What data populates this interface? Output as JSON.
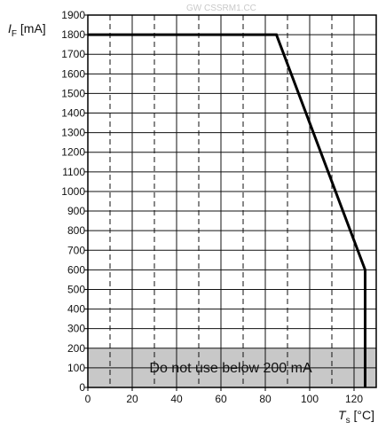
{
  "watermark": "GW CSSRM1.CC",
  "chart_data": {
    "type": "line",
    "title": "",
    "ylabel": {
      "var": "I",
      "sub": "F",
      "unit": "[mA]"
    },
    "xlabel": {
      "var": "T",
      "sub": "s",
      "unit": "[°C]"
    },
    "xlim": [
      0,
      130
    ],
    "ylim": [
      0,
      1900
    ],
    "xticks": [
      0,
      20,
      40,
      60,
      80,
      100,
      120
    ],
    "yticks": [
      0,
      100,
      200,
      300,
      400,
      500,
      600,
      700,
      800,
      900,
      1000,
      1100,
      1200,
      1300,
      1400,
      1500,
      1600,
      1700,
      1800,
      1900
    ],
    "minor_vlines": [
      10,
      30,
      50,
      70,
      90,
      110
    ],
    "grid": true,
    "series": [
      {
        "x": [
          0,
          85,
          125,
          125
        ],
        "y": [
          1800,
          1800,
          600,
          0
        ]
      }
    ],
    "shaded_region": {
      "ymin": 0,
      "ymax": 200,
      "label": "Do not use below 200 mA",
      "color": "#c8c8c8"
    }
  }
}
